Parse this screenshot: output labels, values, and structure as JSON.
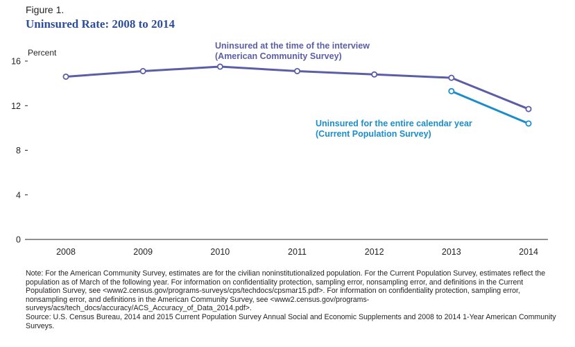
{
  "figure_label": "Figure 1.",
  "title": "Uninsured Rate: 2008 to 2014",
  "chart_data": {
    "type": "line",
    "ylabel": "Percent",
    "ylim": [
      0,
      16
    ],
    "yticks": [
      0,
      4,
      8,
      12,
      16
    ],
    "x": [
      2008,
      2009,
      2010,
      2011,
      2012,
      2013,
      2014
    ],
    "x_labels": [
      "2008",
      "2009",
      "2010",
      "2011",
      "2012",
      "2013",
      "2014"
    ],
    "grid": false,
    "series": [
      {
        "name": "Uninsured at the time of the interview (American Community Survey)",
        "label_lines": [
          "Uninsured at the time of the interview",
          "(American Community Survey)"
        ],
        "color": "#5b5ea6",
        "x": [
          2008,
          2009,
          2010,
          2011,
          2012,
          2013,
          2014
        ],
        "values": [
          14.6,
          15.1,
          15.5,
          15.1,
          14.8,
          14.5,
          11.7
        ]
      },
      {
        "name": "Uninsured for the entire calendar year (Current Population Survey)",
        "label_lines": [
          "Uninsured for the entire calendar year",
          "(Current Population Survey)"
        ],
        "color": "#1b8dc9",
        "x": [
          2013,
          2014
        ],
        "values": [
          13.3,
          10.4
        ]
      }
    ]
  },
  "notes": [
    "Note: For the American Community Survey, estimates are for the civilian noninstitutionalized population. For the Current Population Survey, estimates reflect the population as of March of the following year. For information on confidentiality protection, sampling error, nonsampling error, and definitions in the Current Population Survey, see <www2.census.gov/programs-surveys/cps/techdocs/cpsmar15.pdf>. For information on confidentiality protection, sampling error, nonsampling error, and definitions in the American Community Survey, see <www2.census.gov/programs-surveys/acs/tech_docs/accuracy/ACS_Accuracy_of_Data_2014.pdf>.",
    "Source: U.S. Census Bureau, 2014 and 2015 Current Population Survey Annual Social and Economic Supplements and 2008 to 2014 1-Year American Community Surveys."
  ]
}
